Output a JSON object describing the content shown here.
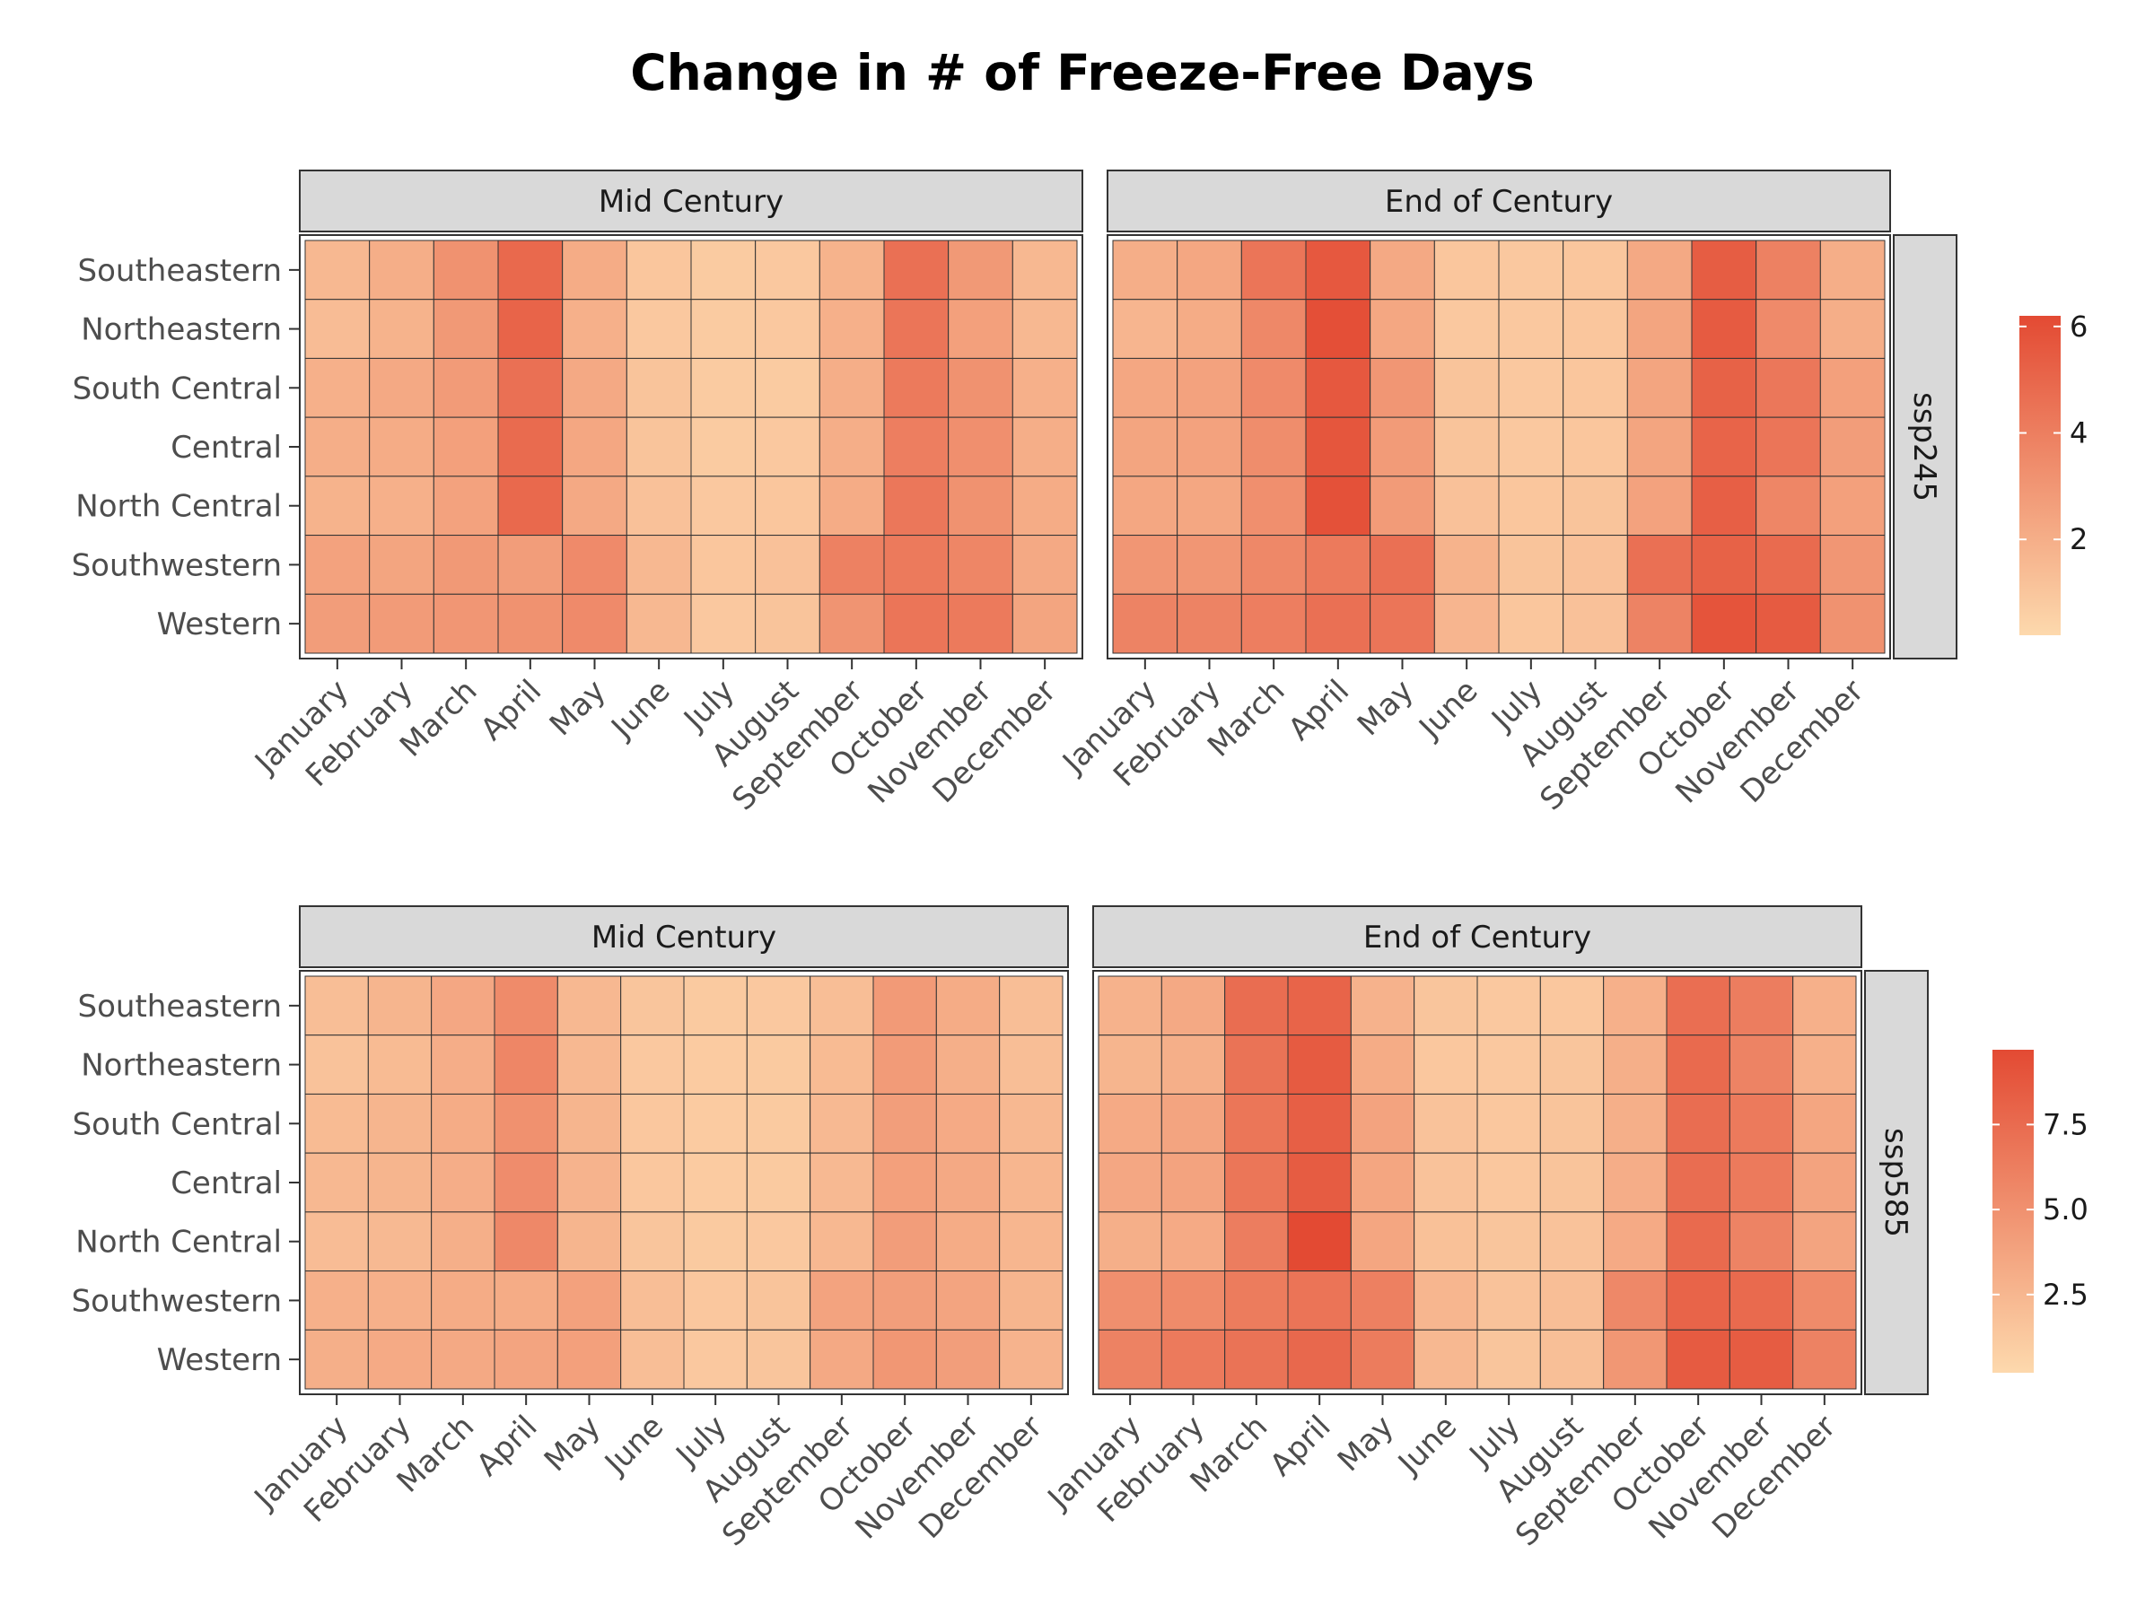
{
  "title": "Change in # of Freeze-Free Days",
  "colors": {
    "low": "#fdd9ad",
    "high": "#e34a33",
    "strip_fill": "#d9d9d9",
    "strip_border": "#333333",
    "cell_border": "#333333"
  },
  "chart_data": [
    {
      "type": "heatmap",
      "scenario": "ssp245",
      "regions": [
        "Southeastern",
        "Northeastern",
        "South Central",
        "Central",
        "North Central",
        "Southwestern",
        "Western"
      ],
      "months": [
        "January",
        "February",
        "March",
        "April",
        "May",
        "June",
        "July",
        "August",
        "September",
        "October",
        "November",
        "December"
      ],
      "legend": {
        "ticks": [
          2,
          4,
          6
        ],
        "min": 0.2,
        "max": 6.2
      },
      "panels": [
        {
          "label": "Mid Century",
          "values": [
            [
              1.6,
              2.0,
              3.2,
              4.9,
              2.1,
              1.0,
              0.8,
              0.9,
              1.8,
              4.6,
              2.9,
              1.6
            ],
            [
              1.4,
              1.8,
              2.9,
              5.1,
              1.9,
              0.9,
              0.8,
              0.9,
              1.9,
              4.4,
              2.6,
              1.6
            ],
            [
              1.9,
              2.2,
              2.8,
              4.6,
              2.2,
              1.1,
              0.8,
              0.8,
              2.0,
              4.2,
              3.2,
              1.9
            ],
            [
              2.0,
              2.1,
              2.6,
              4.8,
              2.3,
              1.1,
              0.8,
              0.9,
              2.0,
              4.0,
              3.3,
              2.0
            ],
            [
              1.8,
              1.9,
              2.5,
              4.9,
              2.2,
              1.2,
              0.9,
              1.0,
              2.1,
              4.3,
              3.2,
              2.1
            ],
            [
              2.5,
              2.4,
              2.9,
              2.7,
              3.5,
              1.6,
              1.0,
              1.2,
              3.9,
              4.2,
              3.7,
              2.2
            ],
            [
              2.7,
              2.8,
              3.0,
              3.2,
              3.5,
              1.6,
              0.9,
              1.1,
              3.1,
              4.4,
              4.2,
              2.4
            ]
          ]
        },
        {
          "label": "End of Century",
          "values": [
            [
              2.0,
              2.3,
              4.4,
              5.6,
              2.2,
              1.0,
              0.9,
              1.0,
              2.2,
              5.4,
              3.9,
              2.0
            ],
            [
              1.7,
              2.1,
              3.6,
              6.0,
              2.3,
              0.9,
              0.9,
              1.0,
              2.4,
              5.5,
              3.5,
              2.0
            ],
            [
              2.3,
              2.5,
              3.5,
              5.6,
              3.0,
              1.1,
              0.9,
              1.0,
              2.4,
              5.2,
              4.3,
              2.6
            ],
            [
              2.4,
              2.5,
              3.4,
              5.7,
              2.8,
              1.1,
              0.9,
              1.0,
              2.4,
              5.1,
              4.4,
              2.7
            ],
            [
              2.3,
              2.3,
              3.3,
              5.9,
              2.8,
              1.2,
              1.0,
              1.1,
              2.5,
              5.3,
              3.7,
              2.6
            ],
            [
              3.0,
              3.0,
              3.6,
              4.2,
              4.6,
              1.8,
              1.1,
              1.2,
              4.6,
              5.2,
              4.8,
              3.0
            ],
            [
              3.8,
              3.8,
              4.0,
              4.6,
              4.4,
              1.7,
              1.0,
              1.2,
              3.8,
              5.8,
              5.5,
              3.2
            ]
          ]
        }
      ]
    },
    {
      "type": "heatmap",
      "scenario": "ssp585",
      "regions": [
        "Southeastern",
        "Northeastern",
        "South Central",
        "Central",
        "North Central",
        "Southwestern",
        "Western"
      ],
      "months": [
        "January",
        "February",
        "March",
        "April",
        "May",
        "June",
        "July",
        "August",
        "September",
        "October",
        "November",
        "December"
      ],
      "legend": {
        "ticks": [
          2.5,
          5.0,
          7.5
        ],
        "tick_labels": [
          "2.5",
          "5.0",
          "7.5"
        ],
        "min": 0.2,
        "max": 9.7
      },
      "panels": [
        {
          "label": "Mid Century",
          "values": [
            [
              2.0,
              2.6,
              3.5,
              5.4,
              2.4,
              1.5,
              1.2,
              1.3,
              2.0,
              4.4,
              3.2,
              2.0
            ],
            [
              1.7,
              2.2,
              3.1,
              5.7,
              2.4,
              1.3,
              1.1,
              1.2,
              2.2,
              4.3,
              3.0,
              2.0
            ],
            [
              2.2,
              2.6,
              3.2,
              5.0,
              2.6,
              1.4,
              1.1,
              1.2,
              2.3,
              4.1,
              3.3,
              2.4
            ],
            [
              2.4,
              2.6,
              3.1,
              5.3,
              2.7,
              1.4,
              1.1,
              1.2,
              2.3,
              4.0,
              3.4,
              2.5
            ],
            [
              2.1,
              2.3,
              3.0,
              5.6,
              2.6,
              1.5,
              1.2,
              1.3,
              2.4,
              4.2,
              3.2,
              2.5
            ],
            [
              2.9,
              2.9,
              3.2,
              3.2,
              3.9,
              2.0,
              1.4,
              1.6,
              3.8,
              4.1,
              3.7,
              2.6
            ],
            [
              3.0,
              3.3,
              3.4,
              3.7,
              4.0,
              2.0,
              1.3,
              1.5,
              3.4,
              4.6,
              4.1,
              2.7
            ]
          ]
        },
        {
          "label": "End of Century",
          "values": [
            [
              2.8,
              3.4,
              7.4,
              8.0,
              2.8,
              1.5,
              1.3,
              1.4,
              2.9,
              7.3,
              6.3,
              2.9
            ],
            [
              2.6,
              3.0,
              7.0,
              8.6,
              3.2,
              1.4,
              1.3,
              1.5,
              3.0,
              7.6,
              5.9,
              2.9
            ],
            [
              3.3,
              3.7,
              6.8,
              8.3,
              3.8,
              1.7,
              1.4,
              1.6,
              3.0,
              7.4,
              6.5,
              3.6
            ],
            [
              3.5,
              3.8,
              6.8,
              8.5,
              3.6,
              1.7,
              1.4,
              1.6,
              3.1,
              7.4,
              6.5,
              3.8
            ],
            [
              3.0,
              3.3,
              6.3,
              9.7,
              3.6,
              1.8,
              1.5,
              1.7,
              3.3,
              7.6,
              5.9,
              3.7
            ],
            [
              5.1,
              5.4,
              6.4,
              6.9,
              6.1,
              2.5,
              1.7,
              2.0,
              5.6,
              8.0,
              7.6,
              5.4
            ],
            [
              6.0,
              6.5,
              7.0,
              7.7,
              6.4,
              2.4,
              1.5,
              1.9,
              4.6,
              8.6,
              8.5,
              6.0
            ]
          ]
        }
      ]
    }
  ]
}
